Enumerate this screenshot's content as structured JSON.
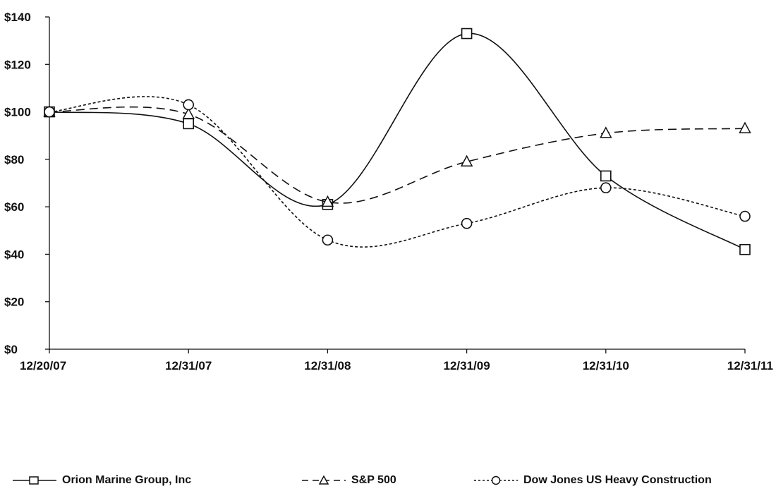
{
  "chart_data": {
    "type": "line",
    "title": "",
    "xlabel": "",
    "ylabel": "",
    "categories": [
      "12/20/07",
      "12/31/07",
      "12/31/08",
      "12/31/09",
      "12/31/10",
      "12/31/11"
    ],
    "ylim": [
      0,
      140
    ],
    "yticks": [
      0,
      20,
      40,
      60,
      80,
      100,
      120,
      140
    ],
    "ytick_labels": [
      "$0",
      "$20",
      "$40",
      "$60",
      "$80",
      "$100",
      "$120",
      "$140"
    ],
    "grid": false,
    "legend_position": "bottom",
    "series": [
      {
        "name": "Orion Marine Group, Inc",
        "marker": "square",
        "dash": "solid",
        "color": "#111111",
        "values": [
          100,
          95,
          61,
          133,
          73,
          42
        ]
      },
      {
        "name": "S&P 500",
        "marker": "triangle",
        "dash": "dashed",
        "color": "#111111",
        "values": [
          100,
          99,
          62,
          79,
          91,
          93
        ]
      },
      {
        "name": "Dow Jones US Heavy Construction",
        "marker": "circle",
        "dash": "dotted",
        "color": "#111111",
        "values": [
          100,
          103,
          46,
          53,
          68,
          56
        ]
      }
    ]
  }
}
